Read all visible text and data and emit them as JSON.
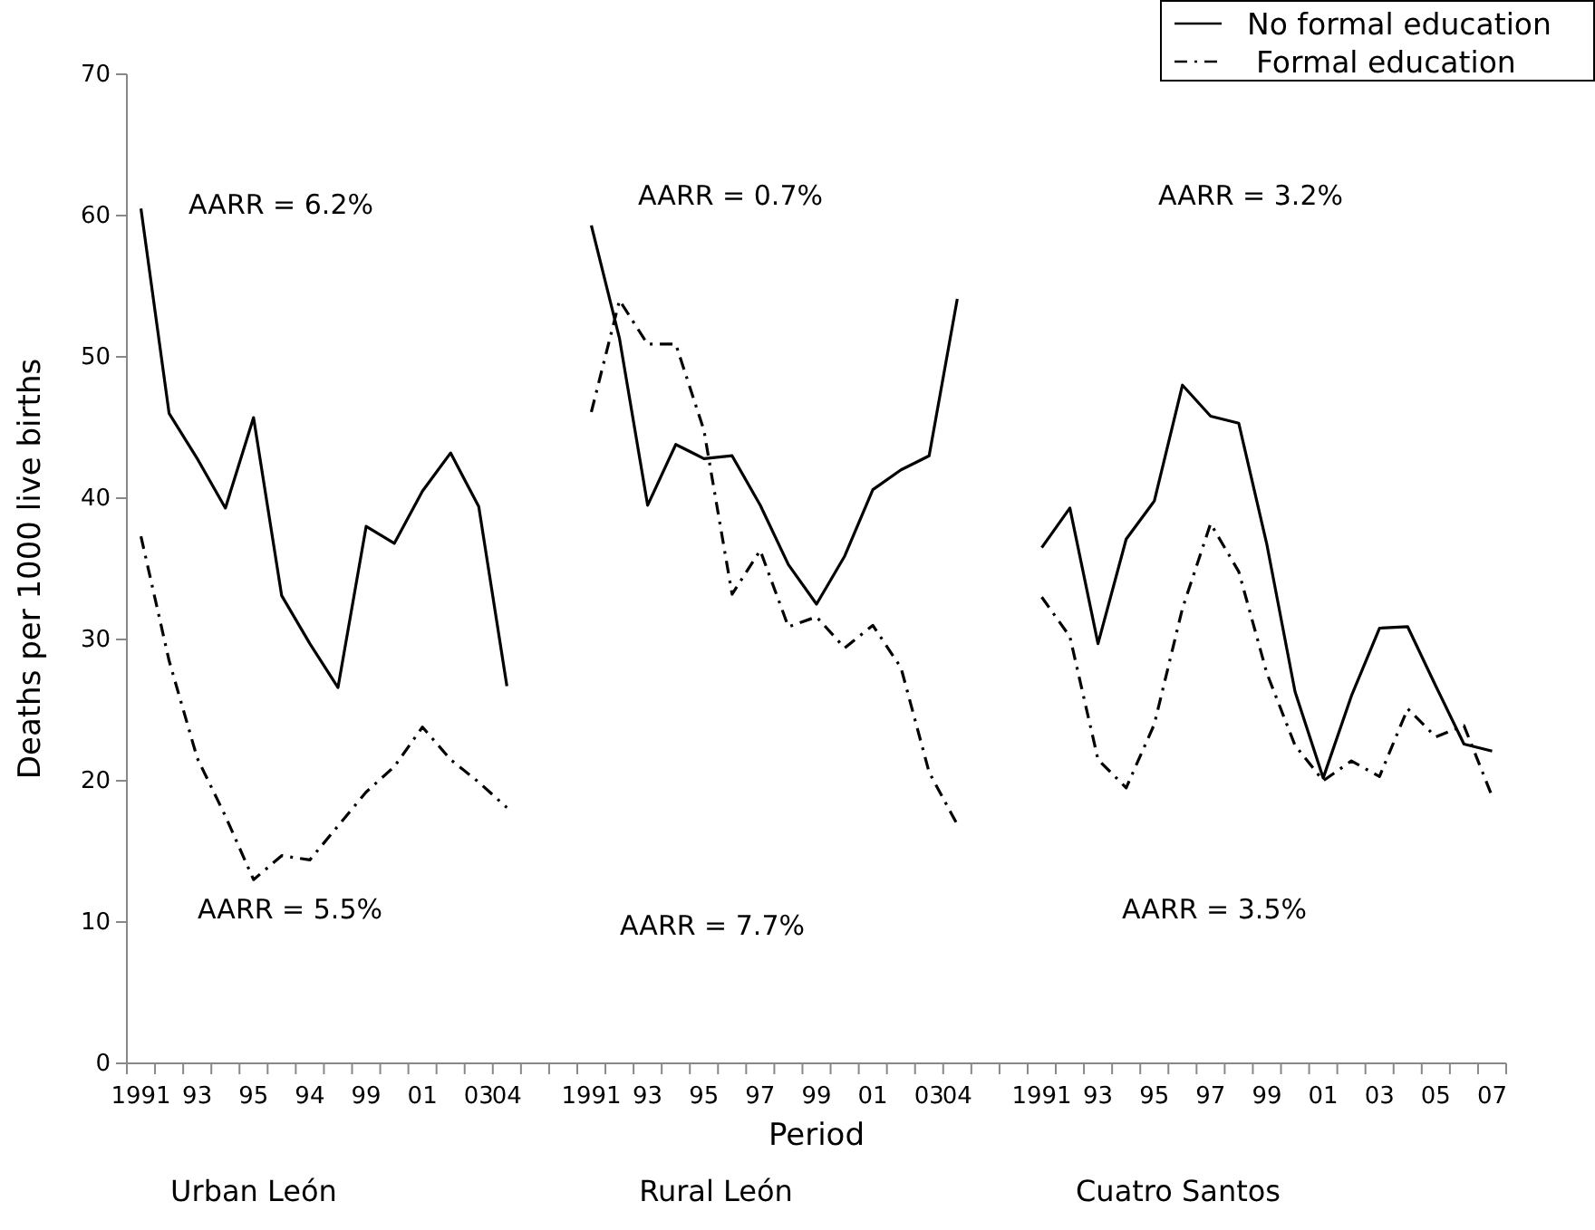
{
  "chart_data": {
    "type": "line",
    "ylabel": "Deaths per 1000 live births",
    "xlabel": "Period",
    "categories": [
      "1991",
      null,
      "93",
      null,
      "95",
      null,
      "94",
      null,
      "99",
      null,
      "01",
      null,
      "03",
      "04",
      null,
      null,
      "1991",
      null,
      "93",
      null,
      "95",
      null,
      "97",
      null,
      "99",
      null,
      "01",
      null,
      "03",
      "04",
      null,
      null,
      "1991",
      null,
      "93",
      null,
      "95",
      null,
      "97",
      null,
      "99",
      null,
      "01",
      null,
      "03",
      null,
      "05",
      null,
      "07"
    ],
    "series": [
      {
        "name": "No formal education",
        "color": "#000000",
        "line_style": "solid",
        "values": [
          60.5,
          46,
          42.8,
          39.3,
          45.7,
          33.1,
          29.7,
          26.6,
          38,
          36.8,
          40.5,
          43.2,
          39.4,
          26.7,
          null,
          null,
          59.3,
          51.3,
          39.5,
          43.8,
          42.8,
          43.0,
          39.5,
          35.3,
          32.5,
          35.9,
          40.6,
          42.0,
          43.0,
          54.1,
          null,
          null,
          36.5,
          39.3,
          29.7,
          37.1,
          39.8,
          48.0,
          45.8,
          45.3,
          36.7,
          26.3,
          20.2,
          26.0,
          30.8,
          30.9,
          26.7,
          22.6,
          22.1
        ]
      },
      {
        "name": "Formal education",
        "color": "#000000",
        "line_style": "dashed",
        "values": [
          37.3,
          28.5,
          21.6,
          17.5,
          13.0,
          14.7,
          14.4,
          16.8,
          19.2,
          21.0,
          23.8,
          21.5,
          19.9,
          18.1,
          null,
          null,
          46.1,
          54.0,
          50.9,
          50.9,
          44.8,
          33.2,
          36.3,
          30.9,
          31.6,
          29.4,
          31.0,
          28.0,
          20.6,
          16.9,
          null,
          null,
          33.0,
          30.2,
          21.5,
          19.5,
          24.0,
          32.2,
          38.2,
          34.8,
          27.6,
          22.5,
          20.0,
          21.4,
          20.3,
          25.1,
          23.1,
          23.9,
          18.9
        ]
      }
    ],
    "ylim": [
      0,
      70
    ],
    "yticks": [
      0,
      10,
      20,
      30,
      40,
      50,
      60,
      70
    ],
    "legend": "top right",
    "annotations": [
      "AARR = 6.2%",
      "AARR = 5.5%",
      "AARR = 0.7%",
      "AARR = 7.7%",
      "AARR = 3.2%",
      "AARR = 3.5%",
      "Urban León",
      "Rural León",
      "Cuatro Santos"
    ]
  }
}
